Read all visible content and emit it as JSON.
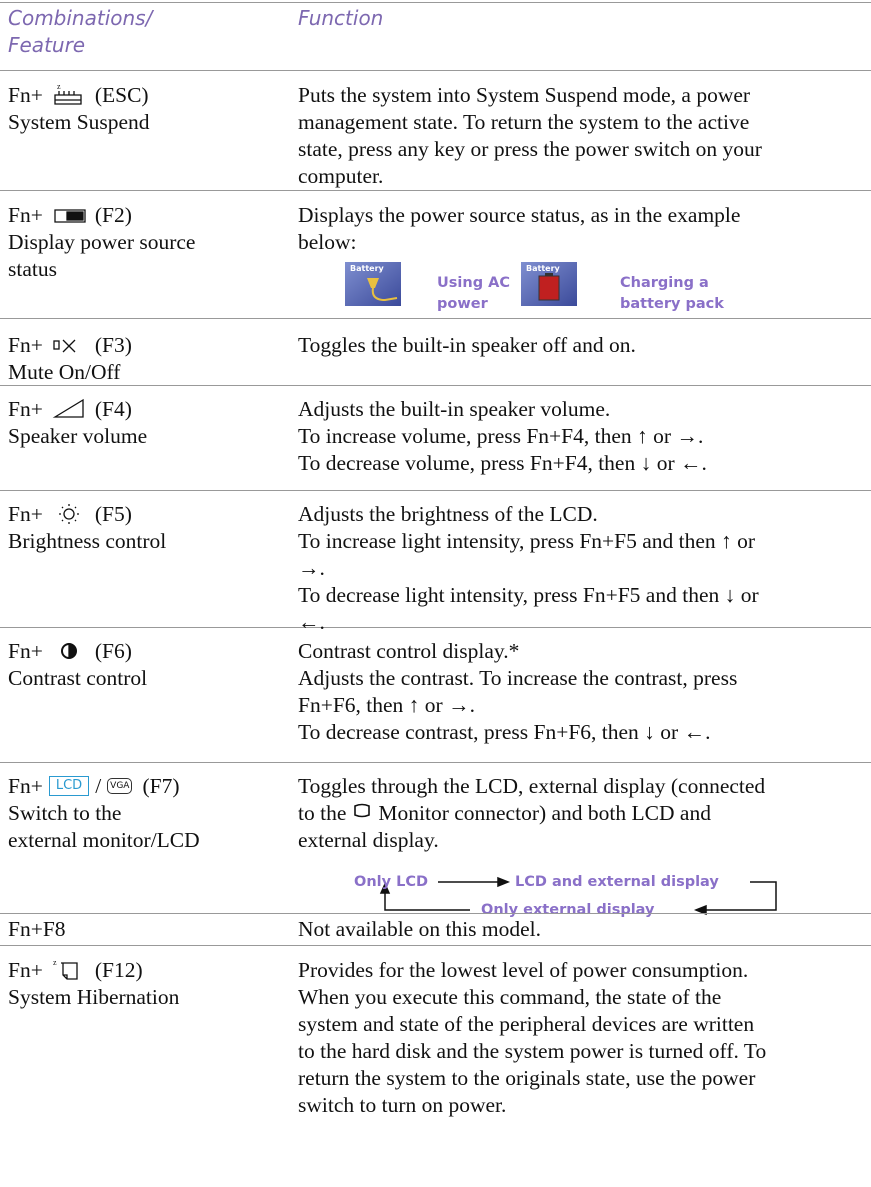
{
  "header": {
    "col1": [
      "Combinations/",
      "Feature"
    ],
    "col2": "Function"
  },
  "rows": [
    {
      "key": {
        "prefix": "Fn+",
        "suffix": "(ESC)"
      },
      "feature": [
        "System Suspend"
      ],
      "function": [
        "Puts the system into System Suspend mode, a power",
        "management state. To return the system to the active",
        "state, press any key or press the power switch on your",
        "computer."
      ]
    },
    {
      "key": {
        "prefix": "Fn+",
        "suffix": "(F2)"
      },
      "feature": [
        "Display power source",
        "status"
      ],
      "function": [
        "Displays the power source status, as in the example",
        "below:"
      ],
      "status": [
        {
          "icon_label": "Battery",
          "caption": [
            "Using AC",
            "power"
          ]
        },
        {
          "icon_label": "Battery",
          "caption": [
            "Charging a",
            "battery pack"
          ]
        }
      ]
    },
    {
      "key": {
        "prefix": "Fn+",
        "suffix": "(F3)"
      },
      "feature": [
        "Mute On/Off"
      ],
      "function": [
        "Toggles the built-in speaker off and on."
      ]
    },
    {
      "key": {
        "prefix": "Fn+",
        "suffix": "(F4)"
      },
      "feature": [
        "Speaker volume"
      ],
      "function": [
        "Adjusts the built-in speaker volume.",
        "To increase volume, press Fn+F4, then ↑ or →.",
        "To decrease volume, press Fn+F4, then ↓ or ←."
      ]
    },
    {
      "key": {
        "prefix": "Fn+",
        "suffix": "(F5)"
      },
      "feature": [
        "Brightness control"
      ],
      "function": [
        "Adjusts the brightness of the LCD.",
        "To increase light intensity, press Fn+F5 and then ↑ or",
        "→.",
        "To decrease light intensity, press Fn+F5 and then ↓ or",
        "←."
      ]
    },
    {
      "key": {
        "prefix": "Fn+",
        "suffix": "(F6)"
      },
      "feature": [
        "Contrast control"
      ],
      "function": [
        "Contrast control display.*",
        "Adjusts the contrast. To increase the contrast, press",
        "Fn+F6, then ↑ or →.",
        "To decrease contrast, press Fn+F6, then ↓ or ←."
      ]
    },
    {
      "key": {
        "prefix": "Fn+",
        "icon_labels": [
          "LCD",
          "VGA"
        ],
        "separator": "/",
        "suffix": "(F7)"
      },
      "feature": [
        "Switch to the",
        "external monitor/LCD"
      ],
      "function": [
        "Toggles through the LCD, external display (connected",
        {
          "before": "to the",
          "after": "Monitor connector) and both LCD and"
        },
        "external display."
      ],
      "diagram": {
        "only_lcd": "Only LCD",
        "both": "LCD and external display",
        "only_external": "Only external display"
      }
    },
    {
      "key": {
        "text": "Fn+F8"
      },
      "feature": [],
      "function": [
        "Not available on this model."
      ]
    },
    {
      "key": {
        "prefix": "Fn+",
        "suffix": "(F12)"
      },
      "feature": [
        "System Hibernation"
      ],
      "function": [
        "Provides for the lowest level of power consumption.",
        "When you execute this command, the state of the",
        "system and state of the peripheral devices are written",
        "to the hard disk and the system power is turned off. To",
        "return the system to the originals state, use the power",
        "switch to turn on power."
      ]
    }
  ]
}
